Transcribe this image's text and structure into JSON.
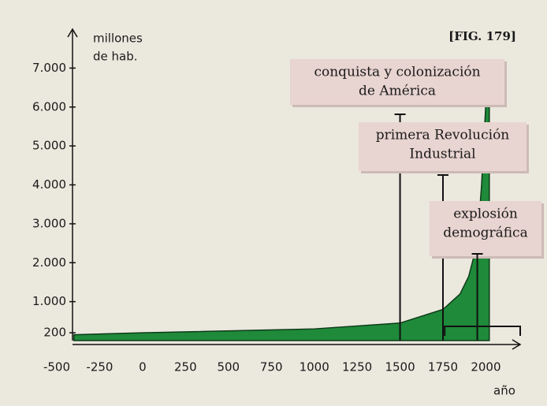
{
  "chart_data": {
    "type": "area",
    "title": "[FIG. 179]",
    "y_label": [
      "millones",
      "de hab."
    ],
    "x_label": "año",
    "x": [
      -400,
      0,
      1000,
      1500,
      1750,
      1800,
      1850,
      1900,
      1950,
      1975,
      2000,
      2020
    ],
    "values": [
      150,
      200,
      300,
      450,
      800,
      1000,
      1200,
      1650,
      2500,
      4000,
      6100,
      7000
    ],
    "color": "#1f8a3a",
    "xlim": [
      -500,
      2200
    ],
    "ylim": [
      0,
      8000
    ],
    "xticks": [
      -500,
      -250,
      0,
      250,
      500,
      750,
      1000,
      1250,
      1500,
      1750,
      2000
    ],
    "yticks": [
      200,
      {
        "value": 1000,
        "label": "1.000"
      },
      {
        "value": 2000,
        "label": "2.000"
      },
      {
        "value": 3000,
        "label": "3.000"
      },
      {
        "value": 4000,
        "label": "4.000"
      },
      {
        "value": 5000,
        "label": "5.000"
      },
      {
        "value": 6000,
        "label": "6.000"
      },
      {
        "value": 7000,
        "label": "7.000"
      }
    ],
    "annotations": [
      {
        "lines": [
          "conquista y colonización",
          "de América"
        ],
        "x": 1500
      },
      {
        "lines": [
          "primera Revolución",
          "Industrial"
        ],
        "x": 1750
      },
      {
        "lines": [
          "explosión",
          "demográfica"
        ],
        "x": 1950
      }
    ]
  }
}
